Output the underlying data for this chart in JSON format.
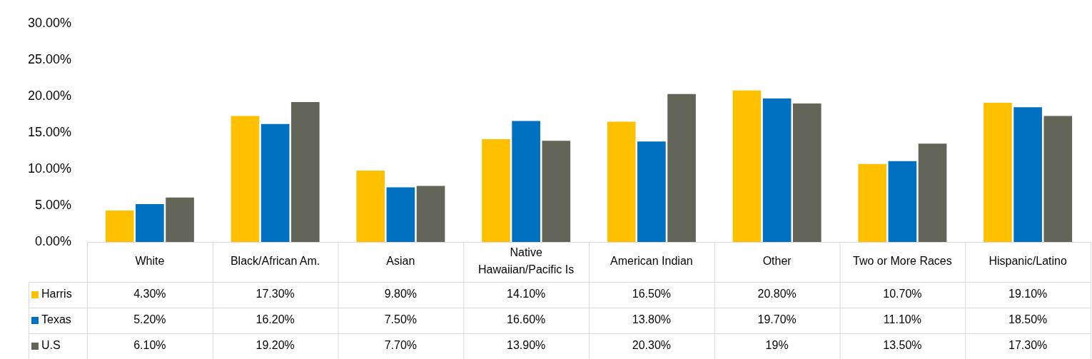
{
  "chart_data": {
    "type": "bar",
    "categories": [
      "White",
      "Black/African Am.",
      "Asian",
      "Native Hawaiian/Pacific Is",
      "American Indian",
      "Other",
      "Two or More Races",
      "Hispanic/Latino"
    ],
    "series": [
      {
        "name": "Harris",
        "color": "#ffc000",
        "values": [
          4.3,
          17.3,
          9.8,
          14.1,
          16.5,
          20.8,
          10.7,
          19.1
        ],
        "value_labels": [
          "4.30%",
          "17.30%",
          "9.80%",
          "14.10%",
          "16.50%",
          "20.80%",
          "10.70%",
          "19.10%"
        ]
      },
      {
        "name": "Texas",
        "color": "#0070c0",
        "values": [
          5.2,
          16.2,
          7.5,
          16.6,
          13.8,
          19.7,
          11.1,
          18.5
        ],
        "value_labels": [
          "5.20%",
          "16.20%",
          "7.50%",
          "16.60%",
          "13.80%",
          "19.70%",
          "11.10%",
          "18.50%"
        ]
      },
      {
        "name": "U.S",
        "color": "#646559",
        "values": [
          6.1,
          19.2,
          7.7,
          13.9,
          20.3,
          19,
          13.5,
          17.3
        ],
        "value_labels": [
          "6.10%",
          "19.20%",
          "7.70%",
          "13.90%",
          "20.30%",
          "19%",
          "13.50%",
          "17.30%"
        ]
      }
    ],
    "ylim": [
      0,
      30
    ],
    "yticks": [
      {
        "value": 0,
        "label": "0.00%"
      },
      {
        "value": 5,
        "label": "5.00%"
      },
      {
        "value": 10,
        "label": "10.00%"
      },
      {
        "value": 15,
        "label": "15.00%"
      },
      {
        "value": 20,
        "label": "20.00%"
      },
      {
        "value": 25,
        "label": "25.00%"
      },
      {
        "value": 30,
        "label": "30.00%"
      }
    ],
    "grid": false,
    "legend": "bottom"
  }
}
